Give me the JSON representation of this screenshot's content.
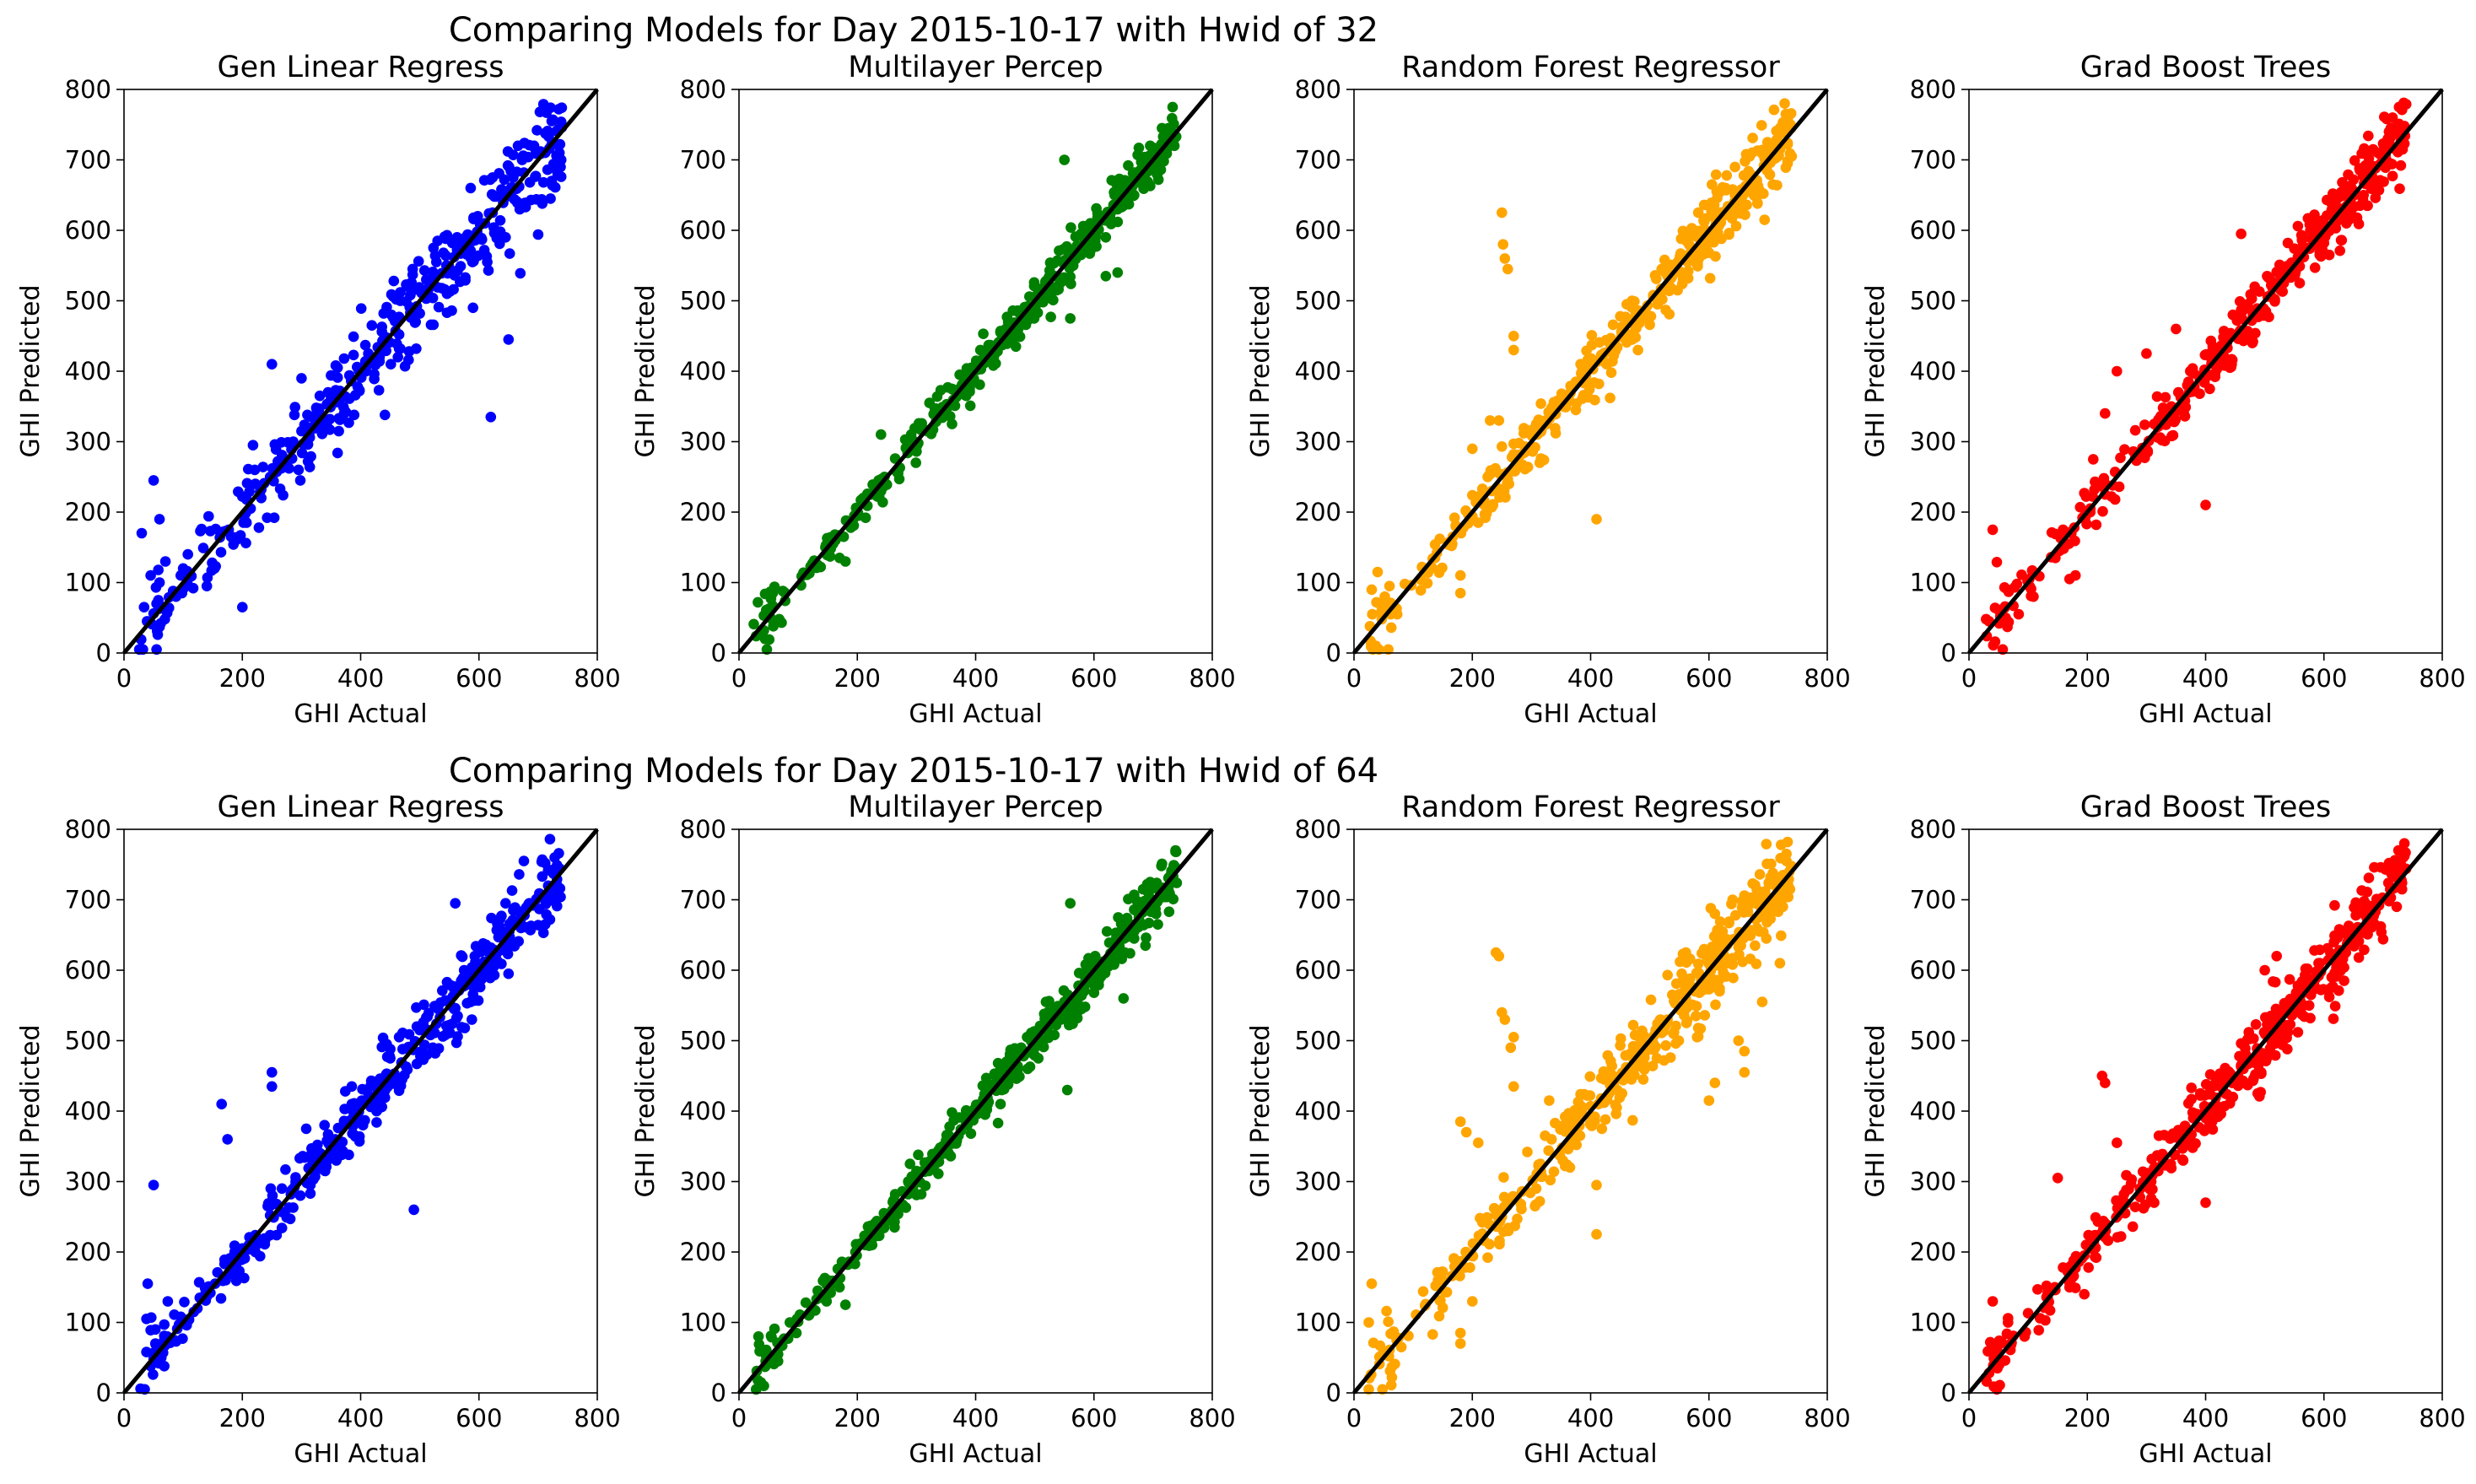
{
  "figure": {
    "rows": [
      {
        "suptitle": "Comparing Models for Day 2015-10-17 with Hwid of 32"
      },
      {
        "suptitle": "Comparing Models for Day 2015-10-17 with Hwid of 64"
      }
    ]
  },
  "colors": {
    "Gen Linear Regress": "#0000ff",
    "Multilayer Percep": "#008000",
    "Random Forest Regressor": "#ffa500",
    "Grad Boost Trees": "#ff0000",
    "reference_line": "#000000"
  },
  "chart_data": [
    {
      "type": "scatter",
      "row": 0,
      "title": "Gen Linear Regress",
      "xlabel": "GHI Actual",
      "ylabel": "GHI Predicted",
      "xlim": [
        0,
        800
      ],
      "ylim": [
        0,
        800
      ],
      "xticks": [
        0,
        200,
        400,
        600,
        800
      ],
      "yticks": [
        0,
        100,
        200,
        300,
        400,
        500,
        600,
        700,
        800
      ],
      "color": "#0000ff",
      "reference_line": [
        [
          0,
          0
        ],
        [
          800,
          800
        ]
      ],
      "noise": 28,
      "outliers": [
        [
          50,
          245
        ],
        [
          60,
          190
        ],
        [
          30,
          170
        ],
        [
          45,
          110
        ],
        [
          70,
          130
        ],
        [
          100,
          120
        ],
        [
          200,
          65
        ],
        [
          620,
          335
        ],
        [
          650,
          445
        ],
        [
          250,
          410
        ],
        [
          300,
          390
        ],
        [
          590,
          490
        ],
        [
          480,
          520
        ]
      ],
      "points": []
    },
    {
      "type": "scatter",
      "row": 0,
      "title": "Multilayer Percep",
      "xlabel": "GHI Actual",
      "ylabel": "GHI Predicted",
      "xlim": [
        0,
        800
      ],
      "ylim": [
        0,
        800
      ],
      "xticks": [
        0,
        200,
        400,
        600,
        800
      ],
      "yticks": [
        0,
        100,
        200,
        300,
        400,
        500,
        600,
        700,
        800
      ],
      "color": "#008000",
      "reference_line": [
        [
          0,
          0
        ],
        [
          800,
          800
        ]
      ],
      "noise": 14,
      "outliers": [
        [
          170,
          135
        ],
        [
          180,
          130
        ],
        [
          550,
          700
        ],
        [
          560,
          475
        ],
        [
          620,
          535
        ],
        [
          640,
          540
        ],
        [
          240,
          310
        ]
      ],
      "points": []
    },
    {
      "type": "scatter",
      "row": 0,
      "title": "Random Forest Regressor",
      "xlabel": "GHI Actual",
      "ylabel": "GHI Predicted",
      "xlim": [
        0,
        800
      ],
      "ylim": [
        0,
        800
      ],
      "xticks": [
        0,
        200,
        400,
        600,
        800
      ],
      "yticks": [
        0,
        100,
        200,
        300,
        400,
        500,
        600,
        700,
        800
      ],
      "color": "#ffa500",
      "reference_line": [
        [
          0,
          0
        ],
        [
          800,
          800
        ]
      ],
      "noise": 20,
      "outliers": [
        [
          250,
          625
        ],
        [
          252,
          580
        ],
        [
          255,
          560
        ],
        [
          260,
          545
        ],
        [
          270,
          450
        ],
        [
          270,
          430
        ],
        [
          410,
          190
        ],
        [
          180,
          110
        ],
        [
          180,
          85
        ],
        [
          230,
          330
        ],
        [
          245,
          330
        ],
        [
          40,
          115
        ],
        [
          30,
          90
        ],
        [
          60,
          95
        ],
        [
          200,
          290
        ]
      ],
      "points": []
    },
    {
      "type": "scatter",
      "row": 0,
      "title": "Grad Boost Trees",
      "xlabel": "GHI Actual",
      "ylabel": "GHI Predicted",
      "xlim": [
        0,
        800
      ],
      "ylim": [
        0,
        800
      ],
      "xticks": [
        0,
        200,
        400,
        600,
        800
      ],
      "yticks": [
        0,
        100,
        200,
        300,
        400,
        500,
        600,
        700,
        800
      ],
      "color": "#ff0000",
      "reference_line": [
        [
          0,
          0
        ],
        [
          800,
          800
        ]
      ],
      "noise": 18,
      "outliers": [
        [
          40,
          175
        ],
        [
          400,
          210
        ],
        [
          230,
          340
        ],
        [
          250,
          400
        ],
        [
          350,
          460
        ],
        [
          170,
          105
        ],
        [
          180,
          110
        ],
        [
          210,
          275
        ],
        [
          460,
          595
        ],
        [
          300,
          425
        ]
      ],
      "points": []
    },
    {
      "type": "scatter",
      "row": 1,
      "title": "Gen Linear Regress",
      "xlabel": "GHI Actual",
      "ylabel": "GHI Predicted",
      "xlim": [
        0,
        800
      ],
      "ylim": [
        0,
        800
      ],
      "xticks": [
        0,
        200,
        400,
        600,
        800
      ],
      "yticks": [
        0,
        100,
        200,
        300,
        400,
        500,
        600,
        700,
        800
      ],
      "color": "#0000ff",
      "reference_line": [
        [
          0,
          0
        ],
        [
          800,
          800
        ]
      ],
      "noise": 22,
      "outliers": [
        [
          50,
          295
        ],
        [
          40,
          155
        ],
        [
          165,
          410
        ],
        [
          175,
          360
        ],
        [
          250,
          455
        ],
        [
          250,
          435
        ],
        [
          560,
          695
        ],
        [
          490,
          260
        ]
      ],
      "points": []
    },
    {
      "type": "scatter",
      "row": 1,
      "title": "Multilayer Percep",
      "xlabel": "GHI Actual",
      "ylabel": "GHI Predicted",
      "xlim": [
        0,
        800
      ],
      "ylim": [
        0,
        800
      ],
      "xticks": [
        0,
        200,
        400,
        600,
        800
      ],
      "yticks": [
        0,
        100,
        200,
        300,
        400,
        500,
        600,
        700,
        800
      ],
      "color": "#008000",
      "reference_line": [
        [
          0,
          0
        ],
        [
          800,
          800
        ]
      ],
      "noise": 14,
      "outliers": [
        [
          560,
          695
        ],
        [
          555,
          430
        ],
        [
          150,
          160
        ],
        [
          180,
          125
        ],
        [
          170,
          150
        ],
        [
          650,
          560
        ]
      ],
      "points": []
    },
    {
      "type": "scatter",
      "row": 1,
      "title": "Random Forest Regressor",
      "xlabel": "GHI Actual",
      "ylabel": "GHI Predicted",
      "xlim": [
        0,
        800
      ],
      "ylim": [
        0,
        800
      ],
      "xticks": [
        0,
        200,
        400,
        600,
        800
      ],
      "yticks": [
        0,
        100,
        200,
        300,
        400,
        500,
        600,
        700,
        800
      ],
      "color": "#ffa500",
      "reference_line": [
        [
          0,
          0
        ],
        [
          800,
          800
        ]
      ],
      "noise": 24,
      "outliers": [
        [
          240,
          625
        ],
        [
          245,
          620
        ],
        [
          250,
          540
        ],
        [
          255,
          530
        ],
        [
          270,
          505
        ],
        [
          265,
          490
        ],
        [
          270,
          435
        ],
        [
          180,
          385
        ],
        [
          190,
          370
        ],
        [
          210,
          355
        ],
        [
          410,
          225
        ],
        [
          410,
          295
        ],
        [
          180,
          70
        ],
        [
          180,
          85
        ],
        [
          200,
          130
        ],
        [
          30,
          155
        ],
        [
          600,
          415
        ],
        [
          610,
          440
        ],
        [
          660,
          485
        ],
        [
          650,
          500
        ],
        [
          540,
          510
        ],
        [
          660,
          455
        ],
        [
          720,
          610
        ],
        [
          690,
          555
        ]
      ],
      "points": []
    },
    {
      "type": "scatter",
      "row": 1,
      "title": "Grad Boost Trees",
      "xlabel": "GHI Actual",
      "ylabel": "GHI Predicted",
      "xlim": [
        0,
        800
      ],
      "ylim": [
        0,
        800
      ],
      "xticks": [
        0,
        200,
        400,
        600,
        800
      ],
      "yticks": [
        0,
        100,
        200,
        300,
        400,
        500,
        600,
        700,
        800
      ],
      "color": "#ff0000",
      "reference_line": [
        [
          0,
          0
        ],
        [
          800,
          800
        ]
      ],
      "noise": 20,
      "outliers": [
        [
          40,
          130
        ],
        [
          230,
          440
        ],
        [
          225,
          450
        ],
        [
          150,
          305
        ],
        [
          400,
          270
        ],
        [
          250,
          355
        ],
        [
          520,
          620
        ],
        [
          500,
          600
        ],
        [
          170,
          150
        ],
        [
          195,
          140
        ],
        [
          320,
          315
        ]
      ],
      "points": []
    }
  ]
}
